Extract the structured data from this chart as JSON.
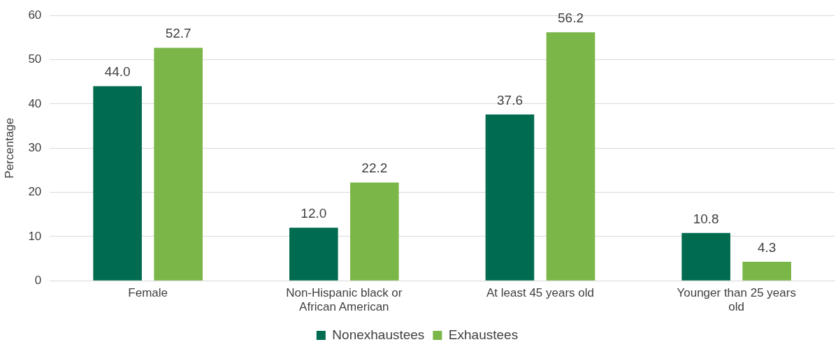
{
  "chart_data": {
    "type": "bar",
    "ylabel": "Percentage",
    "categories": [
      "Female",
      "Non-Hispanic black or African American",
      "At least 45 years old",
      "Younger than 25 years old"
    ],
    "series": [
      {
        "name": "Nonexhaustees",
        "color": "#006b4f",
        "values": [
          44.0,
          12.0,
          37.6,
          10.8
        ],
        "value_labels": [
          "44.0",
          "12.0",
          "37.6",
          "10.8"
        ]
      },
      {
        "name": "Exhaustees",
        "color": "#7ab648",
        "values": [
          52.7,
          22.2,
          56.2,
          4.3
        ],
        "value_labels": [
          "52.7",
          "22.2",
          "56.2",
          "4.3"
        ]
      }
    ],
    "ylim": [
      0,
      60
    ],
    "yticks": [
      0,
      10,
      20,
      30,
      40,
      50,
      60
    ],
    "grid": "y",
    "legend": "bottom"
  }
}
